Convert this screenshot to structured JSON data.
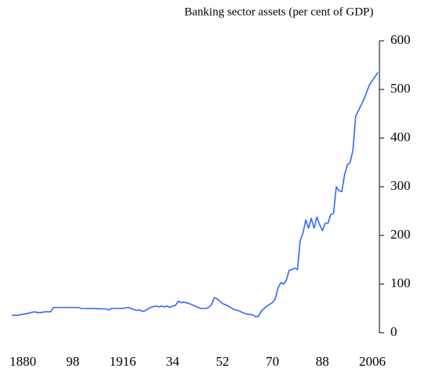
{
  "chart_data": {
    "type": "line",
    "title": "Banking sector assets (per cent of GDP)",
    "x": [
      1876,
      1878,
      1880,
      1882,
      1884,
      1886,
      1888,
      1890,
      1891,
      1895,
      1900,
      1901,
      1910,
      1911,
      1912,
      1916,
      1918,
      1920,
      1921,
      1922,
      1923,
      1924,
      1926,
      1928,
      1929,
      1930,
      1931,
      1932,
      1933,
      1934,
      1935,
      1936,
      1937,
      1938,
      1940,
      1942,
      1944,
      1946,
      1947,
      1948,
      1949,
      1950,
      1951,
      1952,
      1954,
      1956,
      1958,
      1959,
      1960,
      1961,
      1962,
      1963,
      1964,
      1965,
      1966,
      1968,
      1970,
      1971,
      1972,
      1973,
      1974,
      1975,
      1976,
      1977,
      1978,
      1979,
      1980,
      1981,
      1982,
      1983,
      1984,
      1985,
      1986,
      1987,
      1988,
      1989,
      1990,
      1991,
      1992,
      1993,
      1994,
      1995,
      1996,
      1997,
      1998,
      1999,
      2000,
      2003,
      2005,
      2008
    ],
    "series": [
      {
        "name": "Banking sector assets",
        "color": "#3366ff",
        "values": [
          36,
          36,
          38,
          40,
          43,
          41,
          43,
          43,
          52,
          52,
          52,
          50,
          49,
          47,
          50,
          50,
          52,
          48,
          46,
          47,
          44,
          45,
          52,
          55,
          53,
          55,
          53,
          55,
          52,
          55,
          56,
          65,
          62,
          63,
          60,
          55,
          50,
          50,
          52,
          58,
          72,
          70,
          65,
          60,
          55,
          48,
          45,
          42,
          40,
          38,
          38,
          36,
          33,
          34,
          45,
          55,
          62,
          70,
          92,
          103,
          100,
          108,
          128,
          130,
          133,
          130,
          190,
          205,
          232,
          215,
          235,
          215,
          238,
          222,
          210,
          225,
          225,
          243,
          245,
          300,
          292,
          290,
          325,
          345,
          350,
          375,
          445,
          480,
          510,
          535
        ]
      }
    ],
    "xlim": [
      1876,
      2008
    ],
    "xticks": [
      1880,
      {
        "value": 1898,
        "label": "98"
      },
      1916,
      {
        "value": 1934,
        "label": "34"
      },
      {
        "value": 1952,
        "label": "52"
      },
      {
        "value": 1970,
        "label": "70"
      },
      {
        "value": 1988,
        "label": "88"
      },
      2006
    ],
    "ylim": [
      0,
      600
    ],
    "yticks": [
      0,
      100,
      200,
      300,
      400,
      500,
      600
    ],
    "y_axis_side": "right",
    "grid": false
  }
}
